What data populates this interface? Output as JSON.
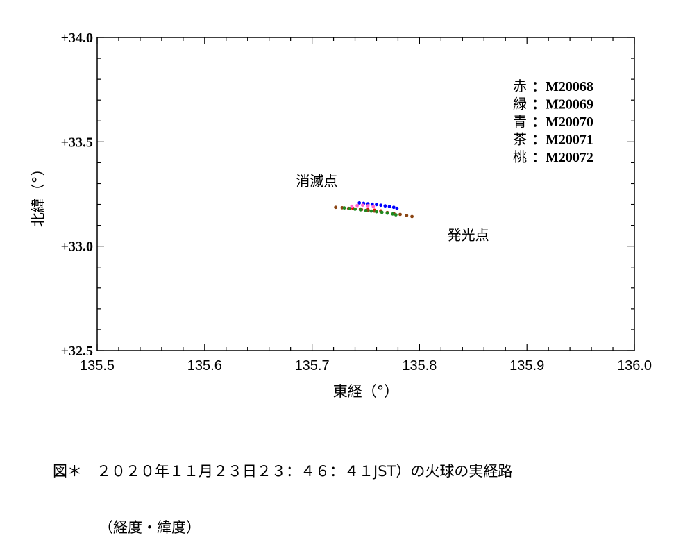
{
  "chart_data": {
    "type": "scatter",
    "xlabel": "東経（°）",
    "ylabel": "北緯（°）",
    "xlim": [
      135.5,
      136.0
    ],
    "ylim": [
      32.5,
      34.0
    ],
    "x_ticks": [
      "135.5",
      "135.6",
      "135.7",
      "135.8",
      "135.9",
      "136.0"
    ],
    "y_ticks": [
      "+34.0",
      "+33.5",
      "+33.0",
      "+32.5"
    ],
    "grid": false,
    "legend_position": "top-right",
    "legend": [
      {
        "prefix": "赤",
        "code": "M20068",
        "color": "#ff0000"
      },
      {
        "prefix": "緑",
        "code": "M20069",
        "color": "#1f8a1f"
      },
      {
        "prefix": "青",
        "code": "M20070",
        "color": "#0000ff"
      },
      {
        "prefix": "茶",
        "code": "M20071",
        "color": "#8b4513"
      },
      {
        "prefix": "桃",
        "code": "M20072",
        "color": "#ff66cc"
      }
    ],
    "series": [
      {
        "color": "#ff0000",
        "x": [
          135.738,
          135.745,
          135.752,
          135.758,
          135.764
        ],
        "y": [
          33.181,
          33.178,
          33.175,
          33.172,
          33.169
        ]
      },
      {
        "color": "#0000ff",
        "x": [
          135.744,
          135.748,
          135.752,
          135.756,
          135.76,
          135.764,
          135.768,
          135.772,
          135.776,
          135.779
        ],
        "y": [
          33.207,
          33.205,
          33.203,
          33.201,
          33.199,
          33.196,
          33.193,
          33.19,
          33.186,
          33.181
        ]
      },
      {
        "color": "#ff66cc",
        "x": [
          135.737,
          135.742,
          135.747,
          135.752,
          135.757
        ],
        "y": [
          33.191,
          33.194,
          33.196,
          33.193,
          33.19
        ]
      },
      {
        "color": "#8b4513",
        "x": [
          135.722,
          135.728,
          135.734,
          135.74,
          135.746,
          135.752,
          135.758,
          135.764,
          135.77,
          135.776,
          135.782,
          135.788,
          135.793
        ],
        "y": [
          33.186,
          33.184,
          33.181,
          33.178,
          33.175,
          33.172,
          33.168,
          33.165,
          33.161,
          33.157,
          33.152,
          33.147,
          33.142
        ]
      },
      {
        "color": "#1f8a1f",
        "x": [
          135.73,
          135.735,
          135.74,
          135.745,
          135.75,
          135.755,
          135.76,
          135.765,
          135.77,
          135.775,
          135.778
        ],
        "y": [
          33.183,
          33.18,
          33.177,
          33.174,
          33.171,
          33.168,
          33.165,
          33.162,
          33.158,
          33.154,
          33.15
        ]
      }
    ],
    "annotations": [
      {
        "text": "消滅点",
        "x": 135.685,
        "y": 33.29
      },
      {
        "text": "発光点",
        "x": 135.826,
        "y": 33.03
      }
    ]
  },
  "caption": {
    "line1": "図＊　２０２０年１１月２３日２３：４６：４１JST）の火球の実経路",
    "line2": "（経度・緯度）"
  }
}
